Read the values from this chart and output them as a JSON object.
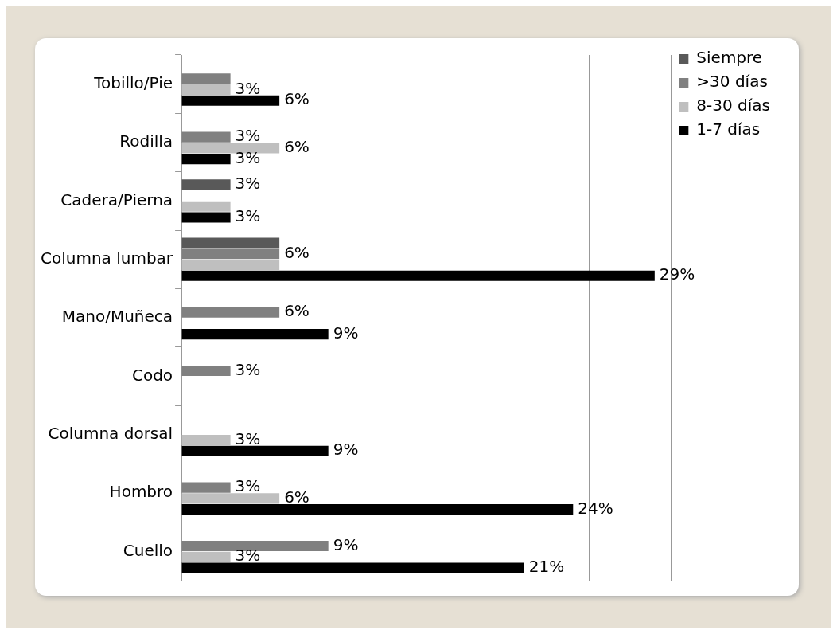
{
  "chart_data": {
    "type": "bar",
    "orientation": "horizontal",
    "categories": [
      "Tobillo/Pie",
      "Rodilla",
      "Cadera/Pierna",
      "Columna lumbar",
      "Mano/Muñeca",
      "Codo",
      "Columna dorsal",
      "Hombro",
      "Cuello"
    ],
    "series": [
      {
        "name": "Siempre",
        "color": "#595959",
        "values": [
          null,
          null,
          3,
          6,
          null,
          null,
          null,
          null,
          null
        ],
        "value_labels": [
          null,
          null,
          "3%",
          null,
          null,
          null,
          null,
          null,
          null
        ]
      },
      {
        "name": ">30 días",
        "color": "#808080",
        "values": [
          3,
          3,
          null,
          6,
          6,
          3,
          null,
          3,
          9
        ],
        "value_labels": [
          null,
          "3%",
          null,
          "6%",
          "6%",
          "3%",
          null,
          "3%",
          "9%"
        ]
      },
      {
        "name": "8-30 días",
        "color": "#bfbfbf",
        "values": [
          3,
          6,
          3,
          6,
          null,
          null,
          3,
          6,
          3
        ],
        "value_labels": [
          "3%",
          "6%",
          null,
          null,
          null,
          null,
          "3%",
          "6%",
          "3%"
        ]
      },
      {
        "name": "1-7 días",
        "color": "#000000",
        "values": [
          6,
          3,
          3,
          29,
          9,
          null,
          9,
          24,
          21
        ],
        "value_labels": [
          "6%",
          "3%",
          "3%",
          "29%",
          "9%",
          null,
          "9%",
          "24%",
          "21%"
        ]
      }
    ],
    "xlim": [
      0,
      30
    ],
    "xticks": [
      {
        "value": 0,
        "label": null
      },
      {
        "value": 5,
        "label": null
      },
      {
        "value": 10,
        "label": null
      },
      {
        "value": 15,
        "label": null
      },
      {
        "value": 20,
        "label": null
      },
      {
        "value": 25,
        "label": null
      },
      {
        "value": 30,
        "label": null
      }
    ],
    "grid": "x",
    "tick_labels": "y",
    "legend": "top right"
  }
}
